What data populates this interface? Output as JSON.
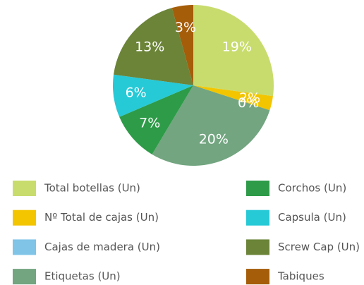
{
  "chart_data": {
    "type": "pie",
    "categories": [
      "Total botellas (Un)",
      "Nº Total de cajas (Un)",
      "Cajas de madera (Un)",
      "Etiquetas (Un)",
      "Corchos (Un)",
      "Capsula (Un)",
      "Screw Cap (Un)",
      "Tabiques"
    ],
    "values": [
      19,
      2,
      0,
      20,
      7,
      6,
      13,
      3
    ],
    "value_labels": [
      "19%",
      "2%",
      "0%",
      "20%",
      "7%",
      "6%",
      "13%",
      "3%"
    ],
    "colors": [
      "#c8dc6e",
      "#f2c500",
      "#80c4e8",
      "#72a580",
      "#2e9b48",
      "#26c9d6",
      "#6b8438",
      "#a55d09"
    ],
    "legend_order": [
      0,
      4,
      1,
      5,
      2,
      6,
      3,
      7
    ]
  }
}
